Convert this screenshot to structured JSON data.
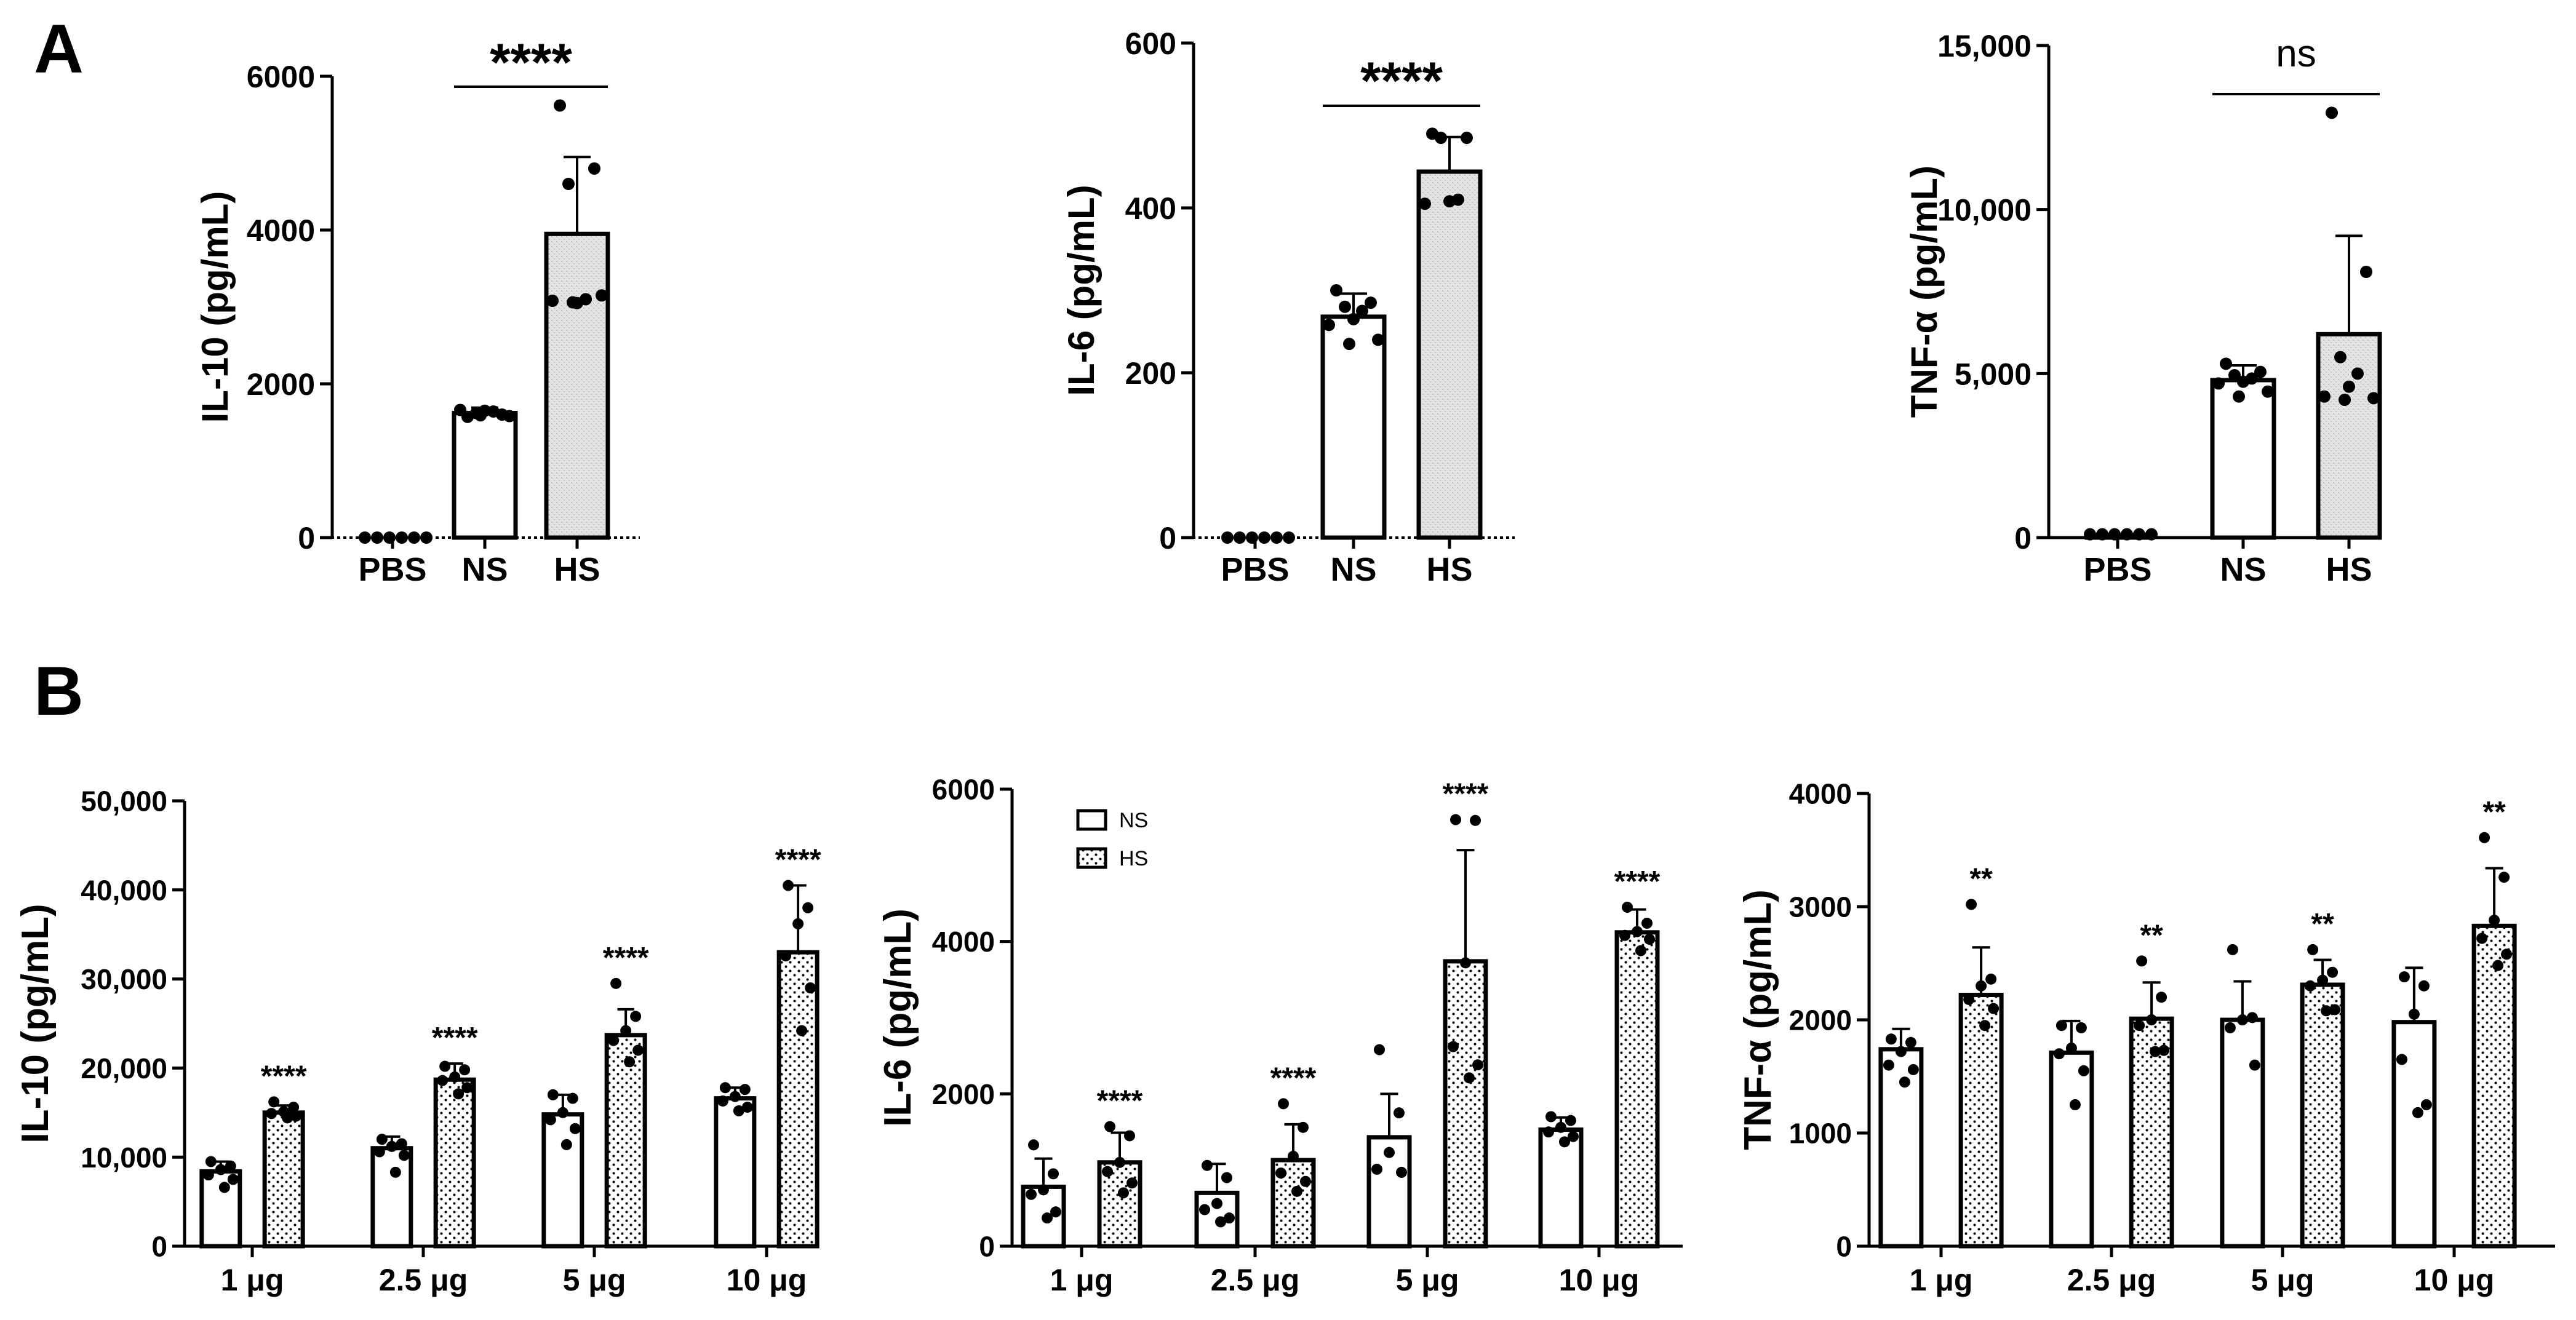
{
  "figure": {
    "panel_labels": [
      "A",
      "B"
    ]
  },
  "chart_data": [
    {
      "type": "bar",
      "panel": "A",
      "ylabel": "IL-10 (pg/mL)",
      "ylim": [
        0,
        6000
      ],
      "yticks": [
        0,
        2000,
        4000,
        6000
      ],
      "ytick_labels": [
        "0",
        "2000",
        "4000",
        "6000"
      ],
      "categories": [
        "PBS",
        "NS",
        "HS"
      ],
      "means": [
        0,
        1620,
        3950
      ],
      "errors": [
        0,
        70,
        1000
      ],
      "fills": [
        "white",
        "white",
        "grey"
      ],
      "points": [
        [
          0,
          0,
          0,
          0,
          0,
          0
        ],
        [
          1570,
          1600,
          1620,
          1640,
          1650,
          1660,
          1580,
          1590
        ],
        [
          5620,
          4800,
          4600,
          3100,
          3050,
          3080,
          3150,
          3060
        ]
      ],
      "significance": [
        {
          "from": 1,
          "to": 2,
          "label": "****"
        }
      ]
    },
    {
      "type": "bar",
      "panel": "A",
      "ylabel": "IL-6 (pg/mL)",
      "ylim": [
        0,
        600
      ],
      "yticks": [
        0,
        200,
        400,
        600
      ],
      "ytick_labels": [
        "0",
        "200",
        "400",
        "600"
      ],
      "categories": [
        "PBS",
        "NS",
        "HS"
      ],
      "means": [
        0,
        268,
        444
      ],
      "errors": [
        0,
        28,
        42
      ],
      "fills": [
        "white",
        "white",
        "grey"
      ],
      "points": [
        [
          0,
          0,
          0,
          0,
          0,
          0
        ],
        [
          300,
          285,
          280,
          275,
          265,
          258,
          240,
          235
        ],
        [
          490,
          485,
          485,
          410,
          408,
          405
        ]
      ],
      "significance": [
        {
          "from": 1,
          "to": 2,
          "label": "****"
        }
      ]
    },
    {
      "type": "bar",
      "panel": "A",
      "ylabel": "TNF-α (pg/mL)",
      "ylim": [
        0,
        15000
      ],
      "yticks": [
        0,
        5000,
        10000,
        15000
      ],
      "ytick_labels": [
        "0",
        "5,000",
        "10,000",
        "15,000"
      ],
      "categories": [
        "PBS",
        "NS",
        "HS"
      ],
      "means": [
        80,
        4800,
        6200
      ],
      "errors": [
        0,
        450,
        3000
      ],
      "fills": [
        "white",
        "white",
        "grey"
      ],
      "points": [
        [
          100,
          100,
          100,
          100,
          100,
          100
        ],
        [
          5300,
          5050,
          4950,
          4850,
          4750,
          4700,
          4450,
          4300
        ],
        [
          12950,
          8100,
          5500,
          5000,
          4600,
          4300,
          4250,
          4200
        ]
      ],
      "significance": [
        {
          "from": 1,
          "to": 2,
          "label": "ns"
        }
      ]
    },
    {
      "type": "bar",
      "panel": "B",
      "ylabel": "IL-10 (pg/mL)",
      "ylim": [
        0,
        50000
      ],
      "yticks": [
        0,
        10000,
        20000,
        30000,
        40000,
        50000
      ],
      "ytick_labels": [
        "0",
        "10,000",
        "20,000",
        "30,000",
        "40,000",
        "50,000"
      ],
      "categories": [
        "1 μg",
        "2.5 μg",
        "5 μg",
        "10 μg"
      ],
      "series": [
        {
          "name": "NS",
          "values": [
            8400,
            11000,
            14800,
            16600
          ],
          "errors": [
            1100,
            1300,
            2200,
            1200
          ],
          "points": [
            [
              9500,
              9000,
              8600,
              8000,
              7500,
              6600
            ],
            [
              12000,
              11500,
              11200,
              10600,
              10200,
              8300
            ],
            [
              17000,
              16600,
              15000,
              14200,
              13200,
              11400
            ],
            [
              17800,
              17600,
              16800,
              16300,
              15600,
              15200
            ]
          ]
        },
        {
          "name": "HS",
          "values": [
            15000,
            18700,
            23700,
            33000
          ],
          "errors": [
            800,
            1800,
            2900,
            7500
          ],
          "points": [
            [
              16200,
              15600,
              15100,
              14900,
              14600,
              14400
            ],
            [
              20200,
              19800,
              19000,
              18600,
              17800,
              17100
            ],
            [
              29500,
              25800,
              24200,
              23100,
              22000,
              20700
            ],
            [
              40500,
              38000,
              36200,
              32600,
              29000,
              24200
            ]
          ]
        }
      ],
      "annotations": [
        "****",
        "****",
        "****",
        "****"
      ]
    },
    {
      "type": "bar",
      "panel": "B",
      "ylabel": "IL-6 (pg/mL)",
      "ylim": [
        0,
        6000
      ],
      "yticks": [
        0,
        2000,
        4000,
        6000
      ],
      "ytick_labels": [
        "0",
        "2000",
        "4000",
        "6000"
      ],
      "categories": [
        "1 μg",
        "2.5 μg",
        "5 μg",
        "10 μg"
      ],
      "series": [
        {
          "name": "NS",
          "values": [
            780,
            700,
            1430,
            1530
          ],
          "errors": [
            370,
            380,
            570,
            160
          ],
          "points": [
            [
              1330,
              950,
              740,
              680,
              450,
              370
            ],
            [
              1060,
              900,
              560,
              480,
              370,
              320
            ],
            [
              2580,
              1750,
              1230,
              1010,
              970
            ],
            [
              1700,
              1650,
              1560,
              1500,
              1440,
              1370
            ]
          ]
        },
        {
          "name": "HS",
          "values": [
            1100,
            1130,
            3740,
            4120
          ],
          "errors": [
            390,
            470,
            1460,
            300
          ],
          "points": [
            [
              1570,
              1450,
              1100,
              980,
              830,
              700
            ],
            [
              1870,
              1560,
              1180,
              960,
              850,
              720
            ],
            [
              5600,
              5590,
              3720,
              2620,
              2380,
              2210
            ],
            [
              4450,
              4240,
              4130,
              4080,
              4030,
              3880
            ]
          ]
        }
      ],
      "annotations": [
        "****",
        "****",
        "****",
        "****"
      ],
      "legend": {
        "position": "top-left",
        "entries": [
          "NS",
          "HS"
        ]
      }
    },
    {
      "type": "bar",
      "panel": "B",
      "ylabel": "TNF-α (pg/mL)",
      "ylim": [
        0,
        4000
      ],
      "yticks": [
        0,
        1000,
        2000,
        3000,
        4000
      ],
      "ytick_labels": [
        "0",
        "1000",
        "2000",
        "3000",
        "4000"
      ],
      "categories": [
        "1 μg",
        "2.5 μg",
        "5 μg",
        "10 μg"
      ],
      "series": [
        {
          "name": "NS",
          "values": [
            1740,
            1710,
            2000,
            1980
          ],
          "errors": [
            180,
            280,
            340,
            480
          ],
          "points": [
            [
              1830,
              1800,
              1720,
              1600,
              1560,
              1450
            ],
            [
              1950,
              1930,
              1750,
              1700,
              1550,
              1250
            ],
            [
              2620,
              2020,
              2000,
              1930,
              1600
            ],
            [
              2380,
              2300,
              2050,
              1650,
              1250,
              1180
            ]
          ]
        },
        {
          "name": "HS",
          "values": [
            2220,
            2010,
            2310,
            2830
          ],
          "errors": [
            420,
            320,
            220,
            510
          ],
          "points": [
            [
              3020,
              2360,
              2300,
              2180,
              2100,
              1950
            ],
            [
              2520,
              2200,
              2000,
              1950,
              1730,
              1720
            ],
            [
              2620,
              2420,
              2350,
              2300,
              2090,
              2080
            ],
            [
              3610,
              3260,
              2880,
              2720,
              2580,
              2480
            ]
          ]
        }
      ],
      "annotations": [
        "**",
        "**",
        "**",
        "**"
      ]
    }
  ]
}
